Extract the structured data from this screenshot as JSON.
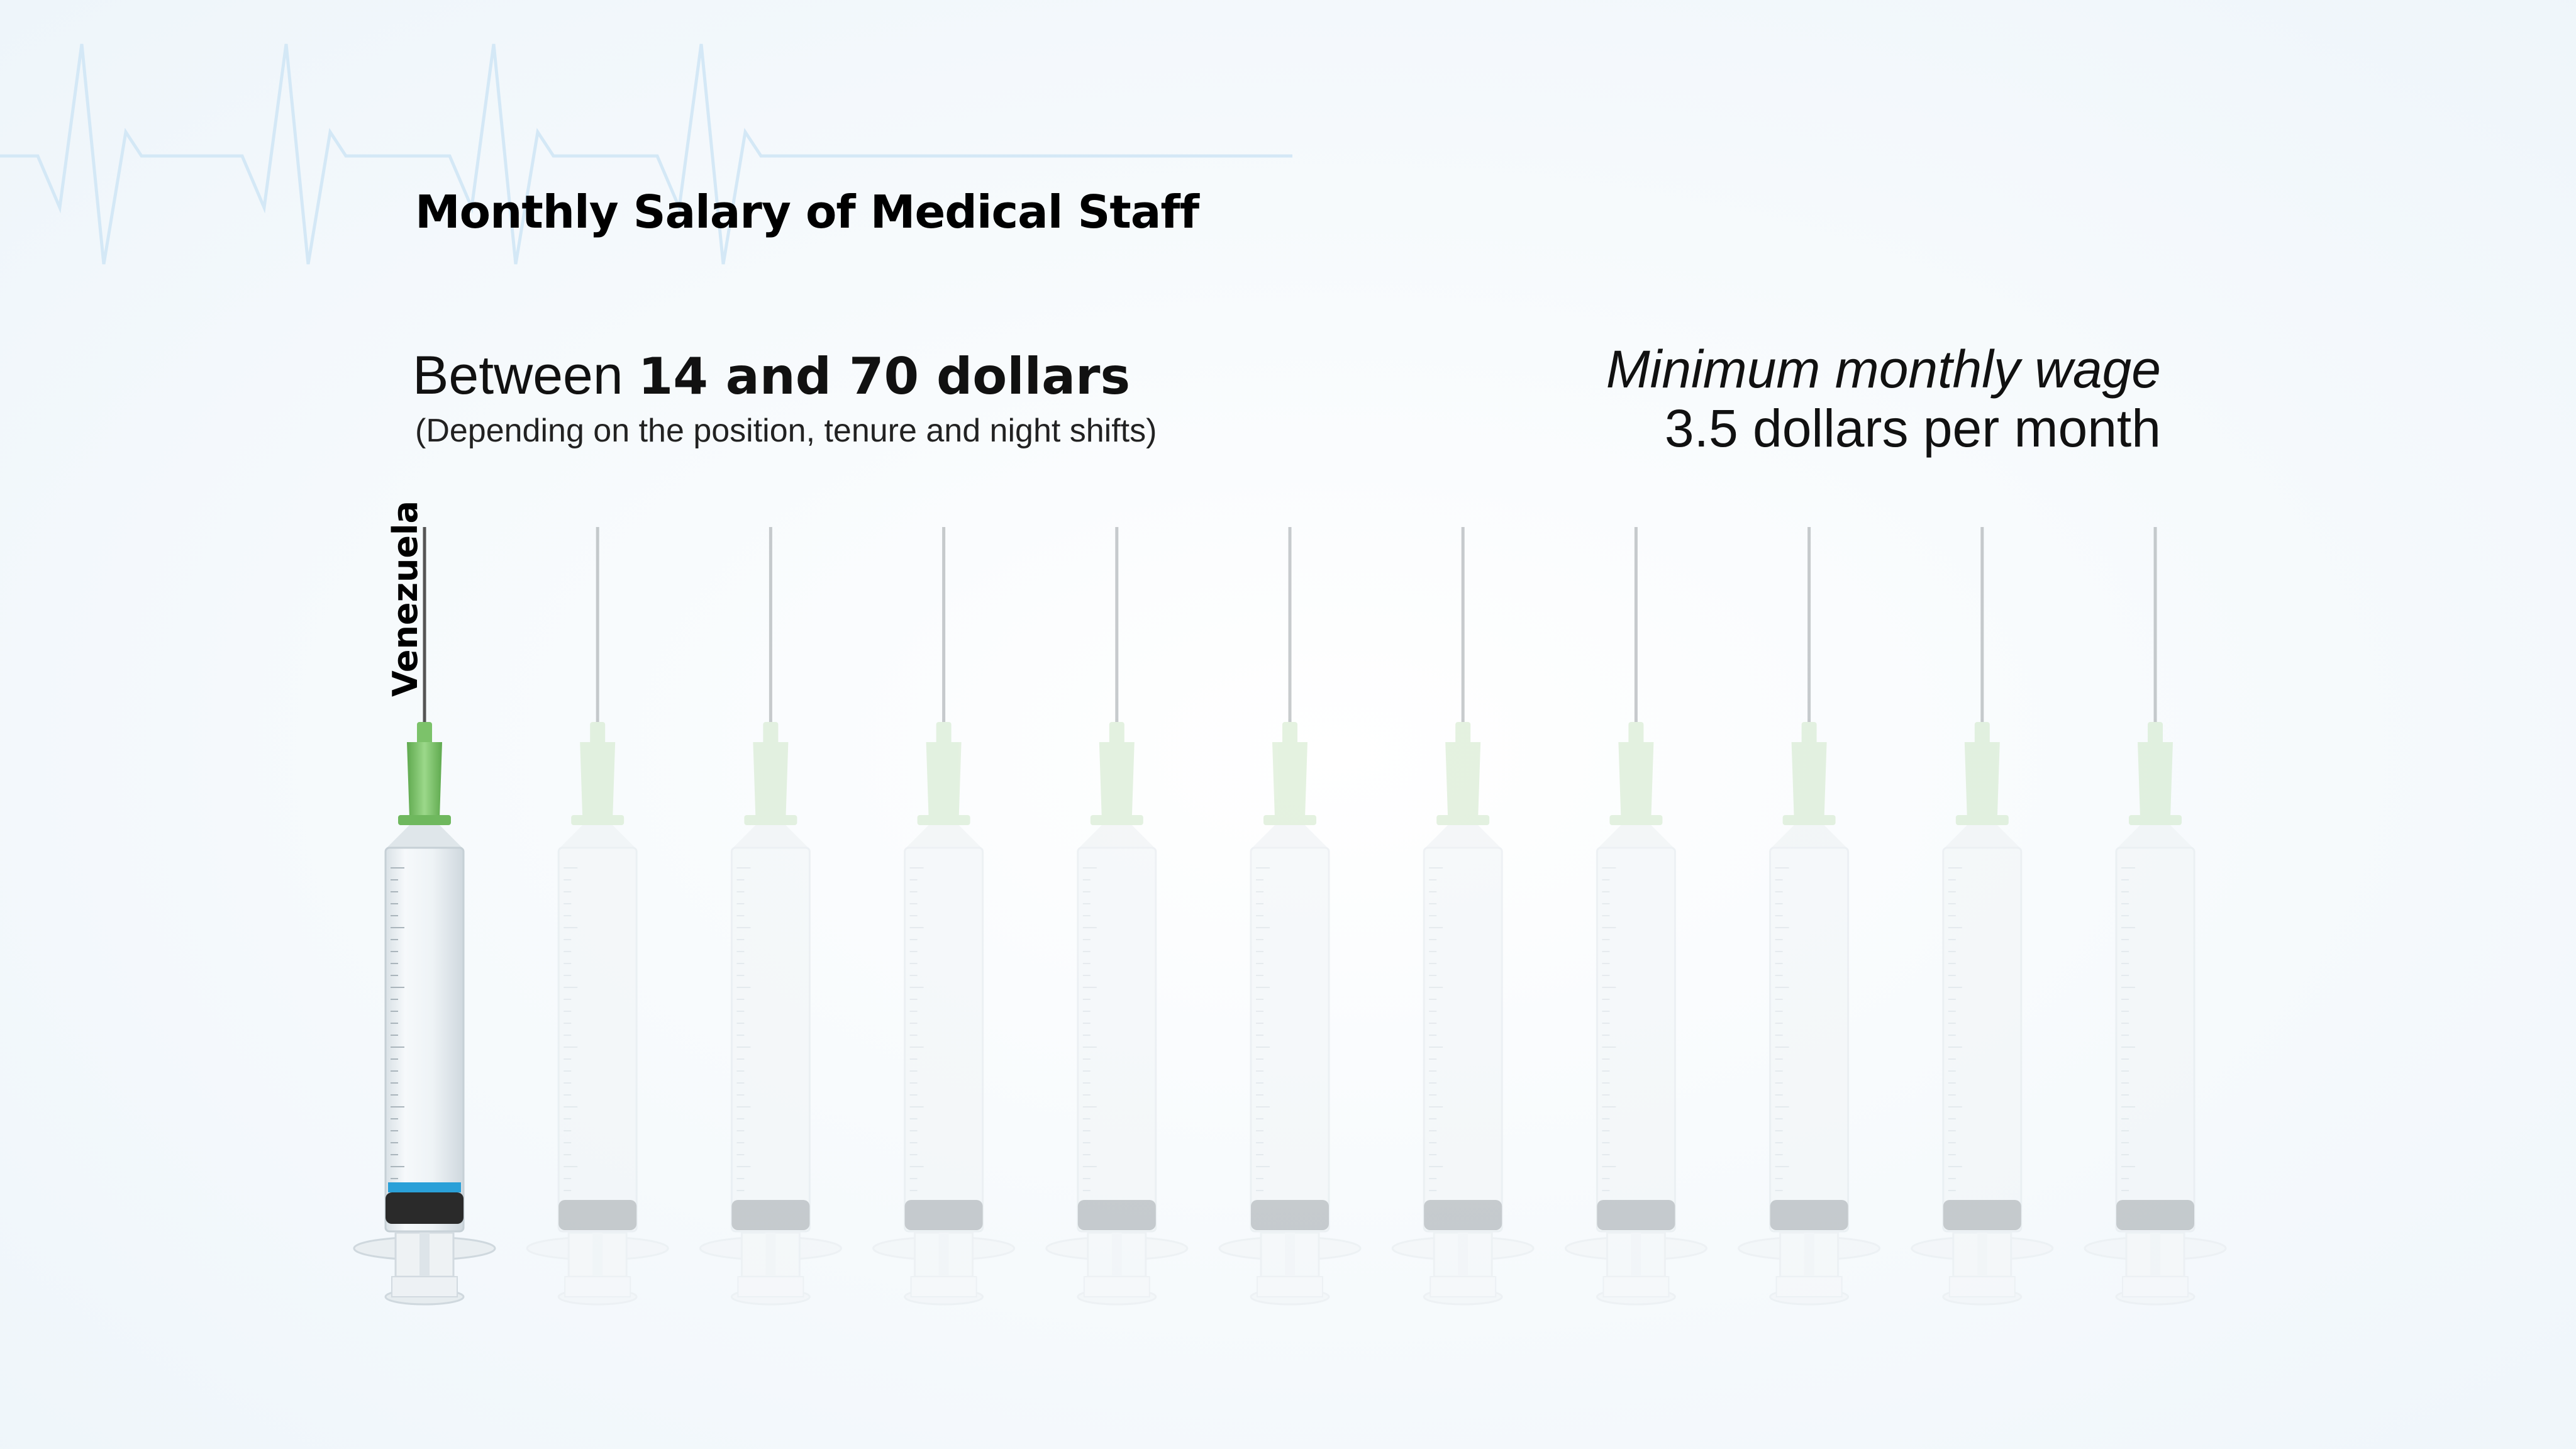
{
  "title": "Monthly Salary of Medical Staff",
  "salary_range": {
    "prefix": "Between ",
    "bold": "14 and 70 dollars",
    "note": "(Depending on the position, tenure and night shifts)"
  },
  "minimum_wage": {
    "label": "Minimum monthly wage",
    "value": "3.5 dollars per month"
  },
  "colors": {
    "needle_hub_active": "#7cc26a",
    "needle_hub_faded": "#cfe8c8",
    "plunger_seal": "#2a2a2a",
    "liquid_accent": "#2aa0d8",
    "ecg_line": "#d4e8f6"
  },
  "chart_data": {
    "type": "pictograph",
    "unit": "syringe",
    "total_units": 11,
    "highlighted_units": 1,
    "categories": [
      "Venezuela"
    ]
  }
}
